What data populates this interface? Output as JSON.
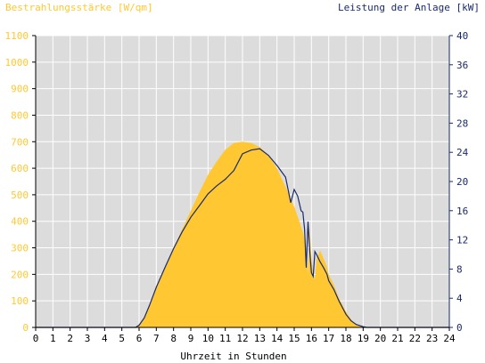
{
  "chart_data": {
    "type": "area",
    "ylabel_left": "Bestrahlungsstärke [W/qm]",
    "ylabel_right": "Leistung der Anlage [kW]",
    "xlabel": "Uhrzeit in Stunden",
    "x_ticks": [
      "0",
      "1",
      "2",
      "3",
      "4",
      "5",
      "6",
      "7",
      "8",
      "9",
      "10",
      "11",
      "12",
      "13",
      "14",
      "15",
      "16",
      "17",
      "18",
      "19",
      "20",
      "21",
      "22",
      "23",
      "24"
    ],
    "y_left_ticks": [
      "0",
      "100",
      "200",
      "300",
      "400",
      "500",
      "600",
      "700",
      "800",
      "900",
      "1000",
      "1100"
    ],
    "y_right_ticks": [
      "0",
      "4",
      "8",
      "12",
      "16",
      "20",
      "24",
      "28",
      "32",
      "36",
      "40"
    ],
    "xlim": [
      0,
      24
    ],
    "ylim_left": [
      0,
      1100
    ],
    "ylim_right": [
      0,
      40
    ],
    "grid": true,
    "colors": {
      "irradiance": "#ffc832",
      "power_line": "#1a2a6c",
      "plot_bg": "#dcdcdc",
      "left_axis_text": "#ffc832",
      "right_axis_text": "#1a2a6c",
      "grid": "#ffffff"
    },
    "series": [
      {
        "kind": "area",
        "axis": "left",
        "x": [
          0,
          5.7,
          6.0,
          6.3,
          6.6,
          7.0,
          7.5,
          8.0,
          8.5,
          9.0,
          9.5,
          10.0,
          10.5,
          11.0,
          11.5,
          12.0,
          12.5,
          13.0,
          13.5,
          14.0,
          14.5,
          15.0,
          15.3,
          15.5,
          15.7,
          15.8,
          15.9,
          16.0,
          16.1,
          16.2,
          16.3,
          16.5,
          16.7,
          16.9,
          17.0,
          17.3,
          17.6,
          18.0,
          18.3,
          18.6,
          19.0,
          19.2,
          24
        ],
        "y": [
          0,
          0,
          10,
          40,
          85,
          150,
          225,
          300,
          370,
          440,
          510,
          575,
          625,
          670,
          695,
          700,
          695,
          680,
          650,
          600,
          530,
          455,
          400,
          360,
          300,
          200,
          380,
          260,
          200,
          180,
          260,
          290,
          260,
          230,
          200,
          160,
          110,
          60,
          30,
          10,
          3,
          0,
          0
        ]
      },
      {
        "kind": "line",
        "axis": "right",
        "x": [
          0,
          5.8,
          6.0,
          6.3,
          6.6,
          7.0,
          7.5,
          8.0,
          8.5,
          9.0,
          9.5,
          10.0,
          10.5,
          11.0,
          11.5,
          12.0,
          12.5,
          13.0,
          13.5,
          14.0,
          14.5,
          14.8,
          15.0,
          15.2,
          15.4,
          15.5,
          15.6,
          15.7,
          15.8,
          15.9,
          16.0,
          16.1,
          16.2,
          16.3,
          16.5,
          16.7,
          16.9,
          17.0,
          17.3,
          17.6,
          18.0,
          18.3,
          18.6,
          19.0,
          19.2,
          24
        ],
        "y": [
          0,
          0,
          0.3,
          1.3,
          3.0,
          5.5,
          8.2,
          10.8,
          13.1,
          15.1,
          16.7,
          18.3,
          19.4,
          20.3,
          21.5,
          23.8,
          24.3,
          24.5,
          23.6,
          22.2,
          20.6,
          17.1,
          18.9,
          18.0,
          16.0,
          15.8,
          13.5,
          8.2,
          14.5,
          10.5,
          7.5,
          7.0,
          10.4,
          10.0,
          9.0,
          8.2,
          7.3,
          6.4,
          5.2,
          3.6,
          1.8,
          0.9,
          0.4,
          0.1,
          0,
          0
        ]
      }
    ]
  }
}
